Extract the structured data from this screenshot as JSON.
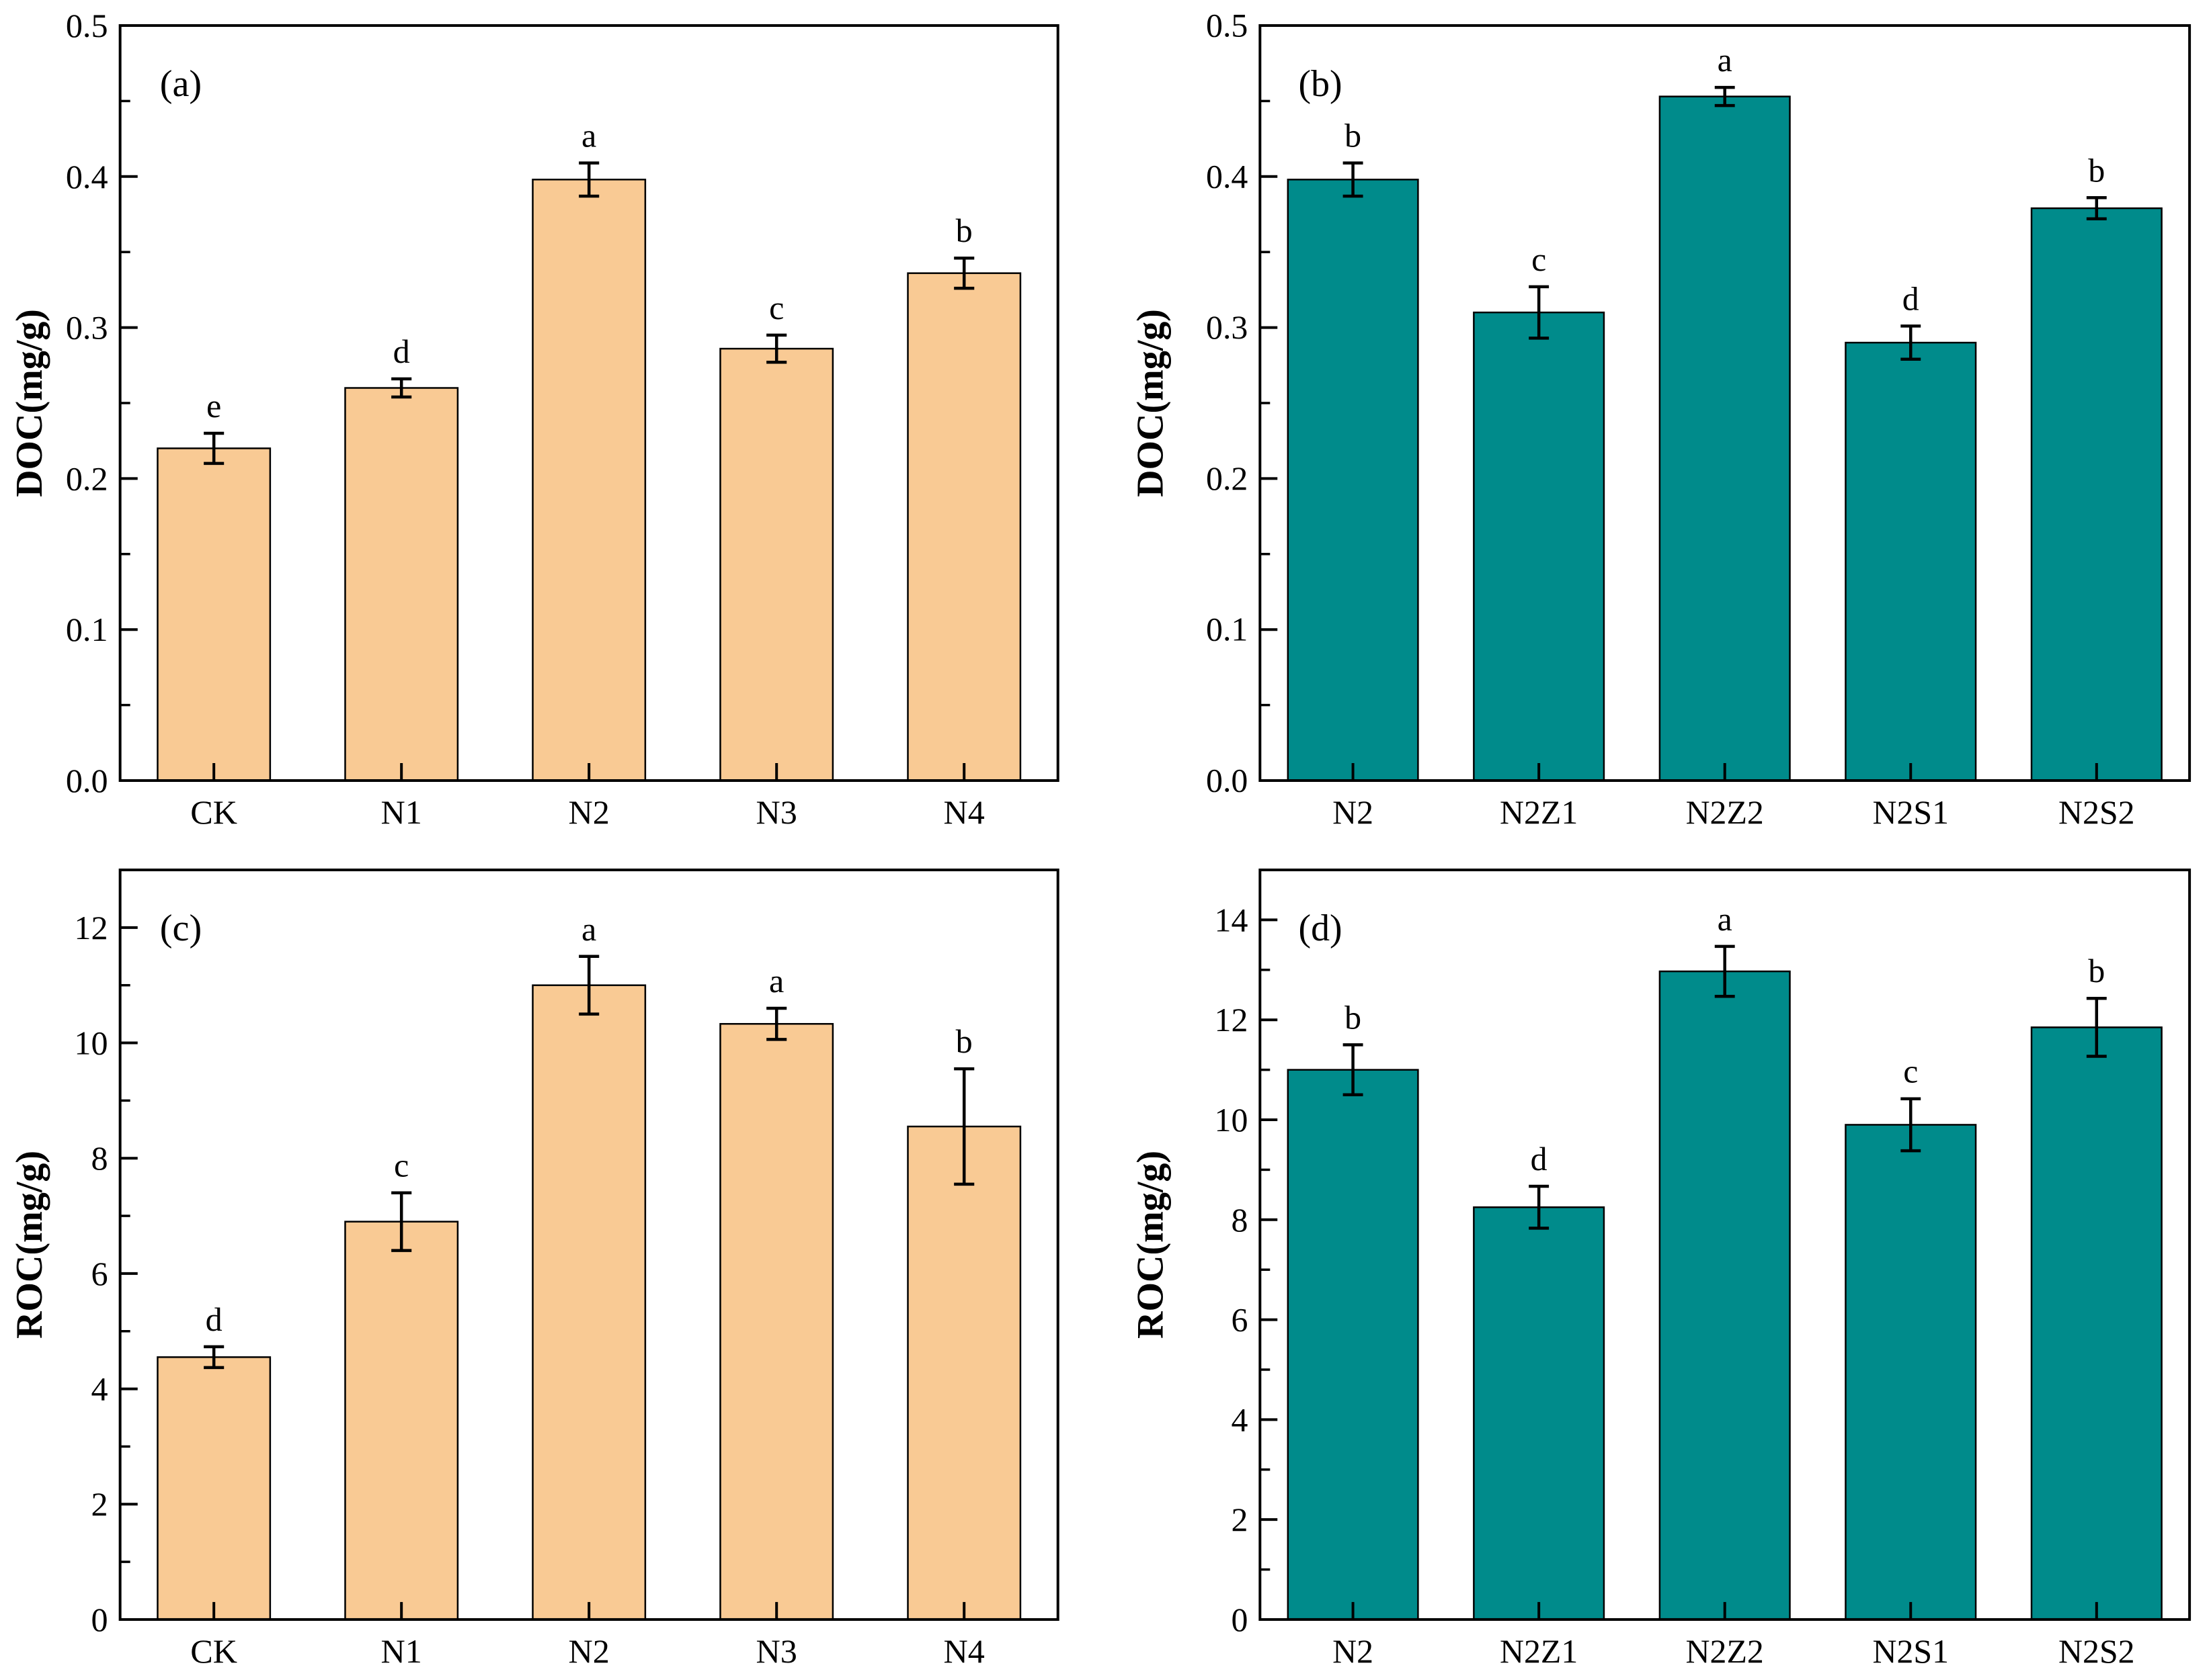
{
  "figure_title": "DOC and ROC bar chart figure, four panels",
  "colors": {
    "background": "#ffffff",
    "orange_bar": "#F9CA94",
    "teal_bar": "#008B8B",
    "bar_edge": "#000000",
    "axis": "#000000"
  },
  "chart_data": [
    {
      "type": "bar",
      "panel_tag": "(a)",
      "ylabel": "DOC(mg/g)",
      "xlabel": "",
      "categories": [
        "CK",
        "N1",
        "N2",
        "N3",
        "N4"
      ],
      "values": [
        0.22,
        0.26,
        0.398,
        0.286,
        0.336
      ],
      "errors": [
        0.01,
        0.006,
        0.011,
        0.009,
        0.01
      ],
      "sig_letters": [
        "e",
        "d",
        "a",
        "c",
        "b"
      ],
      "bar_color": "#F9CA94",
      "ylim": [
        0,
        0.5
      ],
      "yticks": [
        {
          "v": 0.0,
          "label": "0.0"
        },
        {
          "v": 0.1,
          "label": "0.1"
        },
        {
          "v": 0.2,
          "label": "0.2"
        },
        {
          "v": 0.3,
          "label": "0.3"
        },
        {
          "v": 0.4,
          "label": "0.4"
        },
        {
          "v": 0.5,
          "label": "0.5"
        }
      ],
      "yminor_step": 0.05,
      "grid": false,
      "legend": "none",
      "layout": {
        "l": 178,
        "r": 76,
        "t": 38,
        "b": 88,
        "bar_ratio": 0.6,
        "ylabel_x": 62
      }
    },
    {
      "type": "bar",
      "panel_tag": "(b)",
      "ylabel": "DOC(mg/g)",
      "xlabel": "",
      "categories": [
        "N2",
        "N2Z1",
        "N2Z2",
        "N2S1",
        "N2S2"
      ],
      "values": [
        0.398,
        0.31,
        0.453,
        0.29,
        0.379
      ],
      "errors": [
        0.011,
        0.017,
        0.006,
        0.011,
        0.007
      ],
      "sig_letters": [
        "b",
        "c",
        "a",
        "d",
        "b"
      ],
      "bar_color": "#008B8B",
      "ylim": [
        0,
        0.5
      ],
      "yticks": [
        {
          "v": 0.0,
          "label": "0.0"
        },
        {
          "v": 0.1,
          "label": "0.1"
        },
        {
          "v": 0.2,
          "label": "0.2"
        },
        {
          "v": 0.3,
          "label": "0.3"
        },
        {
          "v": 0.4,
          "label": "0.4"
        },
        {
          "v": 0.5,
          "label": "0.5"
        }
      ],
      "yminor_step": 0.05,
      "grid": false,
      "legend": "none",
      "layout": {
        "l": 225,
        "r": 32,
        "t": 38,
        "b": 88,
        "bar_ratio": 0.7,
        "ylabel_x": 80
      }
    },
    {
      "type": "bar",
      "panel_tag": "(c)",
      "ylabel": "ROC(mg/g)",
      "xlabel": "",
      "categories": [
        "CK",
        "N1",
        "N2",
        "N3",
        "N4"
      ],
      "values": [
        4.55,
        6.9,
        11.0,
        10.33,
        8.55
      ],
      "errors": [
        0.18,
        0.5,
        0.5,
        0.27,
        1.0
      ],
      "sig_letters": [
        "d",
        "c",
        "a",
        "a",
        "b"
      ],
      "bar_color": "#F9CA94",
      "ylim": [
        0,
        13
      ],
      "yticks": [
        {
          "v": 0,
          "label": "0"
        },
        {
          "v": 2,
          "label": "2"
        },
        {
          "v": 4,
          "label": "4"
        },
        {
          "v": 6,
          "label": "6"
        },
        {
          "v": 8,
          "label": "8"
        },
        {
          "v": 10,
          "label": "10"
        },
        {
          "v": 12,
          "label": "12"
        }
      ],
      "yminor_step": 1,
      "grid": false,
      "legend": "none",
      "layout": {
        "l": 178,
        "r": 76,
        "t": 45,
        "b": 90,
        "bar_ratio": 0.6,
        "ylabel_x": 62
      }
    },
    {
      "type": "bar",
      "panel_tag": "(d)",
      "ylabel": "ROC(mg/g)",
      "xlabel": "",
      "categories": [
        "N2",
        "N2Z1",
        "N2Z2",
        "N2S1",
        "N2S2"
      ],
      "values": [
        11.0,
        8.25,
        12.97,
        9.9,
        11.85
      ],
      "errors": [
        0.5,
        0.42,
        0.5,
        0.52,
        0.58
      ],
      "sig_letters": [
        "b",
        "d",
        "a",
        "c",
        "b"
      ],
      "bar_color": "#008B8B",
      "ylim": [
        0,
        15
      ],
      "yticks": [
        {
          "v": 0,
          "label": "0"
        },
        {
          "v": 2,
          "label": "2"
        },
        {
          "v": 4,
          "label": "4"
        },
        {
          "v": 6,
          "label": "6"
        },
        {
          "v": 8,
          "label": "8"
        },
        {
          "v": 10,
          "label": "10"
        },
        {
          "v": 12,
          "label": "12"
        },
        {
          "v": 14,
          "label": "14"
        }
      ],
      "yminor_step": 1,
      "grid": false,
      "legend": "none",
      "layout": {
        "l": 225,
        "r": 32,
        "t": 45,
        "b": 90,
        "bar_ratio": 0.7,
        "ylabel_x": 80
      }
    }
  ],
  "style_hints": {
    "font": "serif",
    "tick_direction": "in",
    "box": "full frame",
    "error_bar_caps": true
  }
}
